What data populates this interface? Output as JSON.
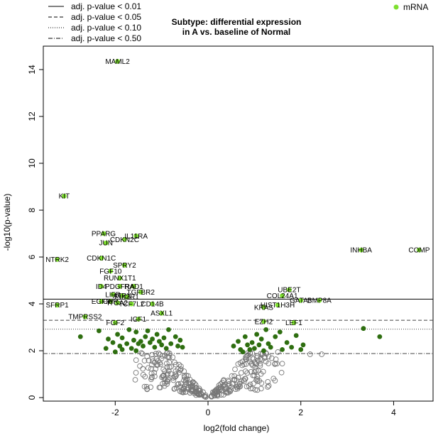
{
  "chart_data": {
    "type": "scatter",
    "title_line1": "Subtype: differential expression",
    "title_line2": "in A vs. baseline of Normal",
    "xlabel": "log2(fold change)",
    "ylabel": "-log10(p-value)",
    "xlim": [
      -3.55,
      4.85
    ],
    "ylim": [
      -0.15,
      15.0
    ],
    "x_ticks": [
      -2,
      0,
      2,
      4
    ],
    "y_ticks": [
      0,
      2,
      4,
      6,
      8,
      10,
      12,
      14
    ],
    "thresholds": [
      {
        "label": "adj. p-value < 0.01",
        "y": 4.2,
        "style": "solid"
      },
      {
        "label": "adj. p-value < 0.05",
        "y": 3.3,
        "style": "dashed"
      },
      {
        "label": "adj. p-value < 0.10",
        "y": 2.92,
        "style": "dotted"
      },
      {
        "label": "adj. p-value < 0.50",
        "y": 1.88,
        "style": "dotdash"
      }
    ],
    "legend_series": "mRNA",
    "colors": {
      "labeled": "#7ee02f",
      "significant": "#2e6e10",
      "nonsignificant": "#777777",
      "threshold": "#444444"
    },
    "labeled_genes": [
      {
        "name": "MAML2",
        "x": -1.95,
        "y": 14.35
      },
      {
        "name": "KIT",
        "x": -3.1,
        "y": 8.6
      },
      {
        "name": "PPARG",
        "x": -2.25,
        "y": 7.0
      },
      {
        "name": "IL11RA",
        "x": -1.55,
        "y": 6.9
      },
      {
        "name": "CDKN2C",
        "x": -1.8,
        "y": 6.75
      },
      {
        "name": "JUN",
        "x": -2.2,
        "y": 6.6
      },
      {
        "name": "NTRK2",
        "x": -3.25,
        "y": 5.9
      },
      {
        "name": "CDKN1C",
        "x": -2.3,
        "y": 5.95
      },
      {
        "name": "SPRY2",
        "x": -1.8,
        "y": 5.65
      },
      {
        "name": "FGF10",
        "x": -2.1,
        "y": 5.4
      },
      {
        "name": "RUNX1T1",
        "x": -1.9,
        "y": 5.1
      },
      {
        "name": "ID4",
        "x": -2.3,
        "y": 4.75
      },
      {
        "name": "PDGFRA",
        "x": -1.9,
        "y": 4.75
      },
      {
        "name": "RAD1",
        "x": -1.6,
        "y": 4.75
      },
      {
        "name": "TGFBR2",
        "x": -1.45,
        "y": 4.5
      },
      {
        "name": "LIFR",
        "x": -2.05,
        "y": 4.4
      },
      {
        "name": "ATRX",
        "x": -1.85,
        "y": 4.35
      },
      {
        "name": "PIK3R1",
        "x": -1.75,
        "y": 4.3
      },
      {
        "name": "EGFR",
        "x": -2.3,
        "y": 4.1
      },
      {
        "name": "CHR",
        "x": -2.1,
        "y": 4.1
      },
      {
        "name": "ITGA2",
        "x": -1.95,
        "y": 4.05
      },
      {
        "name": "TCF7L2",
        "x": -1.65,
        "y": 4.0
      },
      {
        "name": "CD14B",
        "x": -1.2,
        "y": 4.0
      },
      {
        "name": "SFRP1",
        "x": -3.25,
        "y": 3.95
      },
      {
        "name": "ASXL1",
        "x": -1.0,
        "y": 3.6
      },
      {
        "name": "TMPRSS2",
        "x": -2.65,
        "y": 3.45
      },
      {
        "name": "IGF1",
        "x": -1.5,
        "y": 3.35
      },
      {
        "name": "FGF2",
        "x": -2.0,
        "y": 3.2
      },
      {
        "name": "INHBA",
        "x": 3.3,
        "y": 6.3
      },
      {
        "name": "COMP",
        "x": 4.55,
        "y": 6.3
      },
      {
        "name": "UBE2T",
        "x": 1.75,
        "y": 4.6
      },
      {
        "name": "COL24A1",
        "x": 1.6,
        "y": 4.35
      },
      {
        "name": "GATA3",
        "x": 2.0,
        "y": 4.15
      },
      {
        "name": "BMP8A",
        "x": 2.4,
        "y": 4.15
      },
      {
        "name": "HIST1H3H",
        "x": 1.5,
        "y": 3.95
      },
      {
        "name": "KRAS",
        "x": 1.2,
        "y": 3.85
      },
      {
        "name": "EZH2",
        "x": 1.2,
        "y": 3.25
      },
      {
        "name": "LEF1",
        "x": 1.85,
        "y": 3.2
      }
    ],
    "significant_points": [
      {
        "x": -2.75,
        "y": 2.6
      },
      {
        "x": -2.35,
        "y": 2.85
      },
      {
        "x": -2.2,
        "y": 2.1
      },
      {
        "x": -2.15,
        "y": 2.5
      },
      {
        "x": -2.05,
        "y": 2.35
      },
      {
        "x": -1.95,
        "y": 2.7
      },
      {
        "x": -1.9,
        "y": 2.2
      },
      {
        "x": -1.85,
        "y": 2.55
      },
      {
        "x": -1.75,
        "y": 2.3
      },
      {
        "x": -1.7,
        "y": 2.9
      },
      {
        "x": -1.65,
        "y": 2.1
      },
      {
        "x": -1.6,
        "y": 2.45
      },
      {
        "x": -1.55,
        "y": 2.8
      },
      {
        "x": -1.5,
        "y": 2.3
      },
      {
        "x": -1.45,
        "y": 2.4
      },
      {
        "x": -1.4,
        "y": 2.2
      },
      {
        "x": -1.35,
        "y": 2.6
      },
      {
        "x": -1.3,
        "y": 2.85
      },
      {
        "x": -1.25,
        "y": 2.35
      },
      {
        "x": -1.2,
        "y": 2.5
      },
      {
        "x": -1.15,
        "y": 2.15
      },
      {
        "x": -1.1,
        "y": 2.7
      },
      {
        "x": -1.05,
        "y": 2.4
      },
      {
        "x": -1.0,
        "y": 2.25
      },
      {
        "x": -0.95,
        "y": 2.55
      },
      {
        "x": -0.9,
        "y": 2.1
      },
      {
        "x": -0.85,
        "y": 2.9
      },
      {
        "x": -0.8,
        "y": 2.3
      },
      {
        "x": -0.7,
        "y": 2.6
      },
      {
        "x": -0.65,
        "y": 2.2
      },
      {
        "x": -0.6,
        "y": 2.45
      },
      {
        "x": -0.55,
        "y": 2.15
      },
      {
        "x": -1.85,
        "y": 2.05
      },
      {
        "x": -2.0,
        "y": 1.95
      },
      {
        "x": -1.55,
        "y": 2.0
      },
      {
        "x": 0.55,
        "y": 2.2
      },
      {
        "x": 0.65,
        "y": 2.4
      },
      {
        "x": 0.7,
        "y": 2.05
      },
      {
        "x": 0.8,
        "y": 2.6
      },
      {
        "x": 0.85,
        "y": 2.25
      },
      {
        "x": 0.9,
        "y": 2.05
      },
      {
        "x": 0.95,
        "y": 2.35
      },
      {
        "x": 1.0,
        "y": 2.1
      },
      {
        "x": 1.05,
        "y": 2.7
      },
      {
        "x": 1.1,
        "y": 2.25
      },
      {
        "x": 1.15,
        "y": 2.5
      },
      {
        "x": 1.25,
        "y": 2.9
      },
      {
        "x": 1.3,
        "y": 2.3
      },
      {
        "x": 1.35,
        "y": 2.15
      },
      {
        "x": 1.45,
        "y": 2.6
      },
      {
        "x": 1.55,
        "y": 2.8
      },
      {
        "x": 1.6,
        "y": 2.05
      },
      {
        "x": 1.7,
        "y": 2.35
      },
      {
        "x": 1.8,
        "y": 2.15
      },
      {
        "x": 1.9,
        "y": 2.65
      },
      {
        "x": 2.0,
        "y": 2.05
      },
      {
        "x": 2.05,
        "y": 2.25
      },
      {
        "x": 3.35,
        "y": 2.95
      },
      {
        "x": 3.7,
        "y": 2.6
      },
      {
        "x": 0.75,
        "y": 1.95
      },
      {
        "x": 1.2,
        "y": 2.0
      }
    ]
  },
  "legend": {
    "lines": [
      "adj. p-value < 0.01",
      "adj. p-value < 0.05",
      "adj. p-value < 0.10",
      "adj. p-value < 0.50"
    ],
    "series": "mRNA"
  }
}
